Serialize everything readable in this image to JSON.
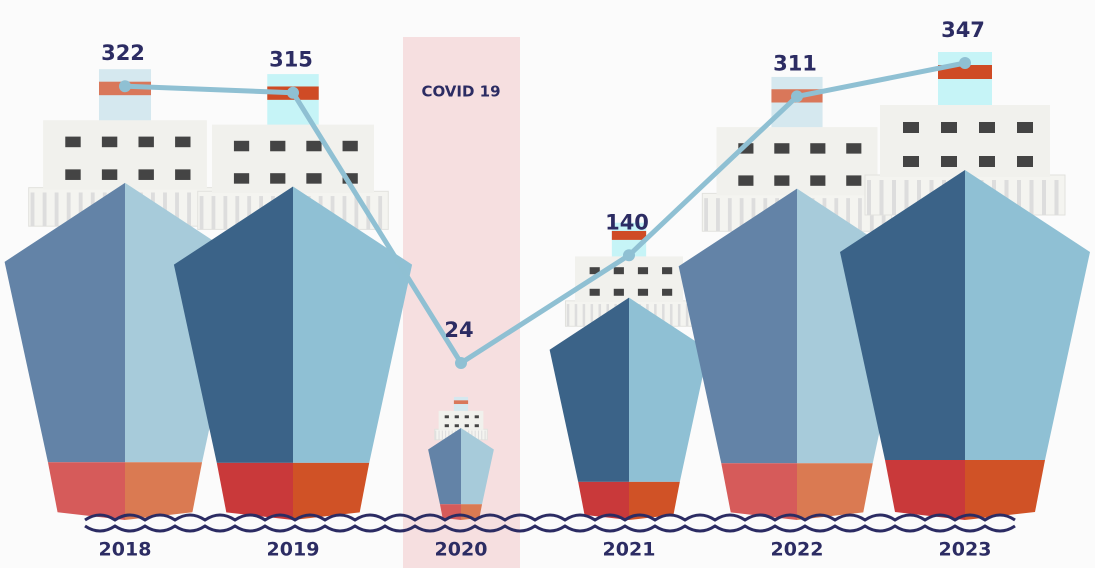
{
  "chart_data": {
    "type": "line",
    "categories": [
      "2018",
      "2019",
      "2020",
      "2021",
      "2022",
      "2023"
    ],
    "values": [
      322,
      315,
      24,
      140,
      311,
      347
    ],
    "color": "#8fc0d3",
    "annotation": "COVID 19",
    "highlight": "2020"
  }
}
